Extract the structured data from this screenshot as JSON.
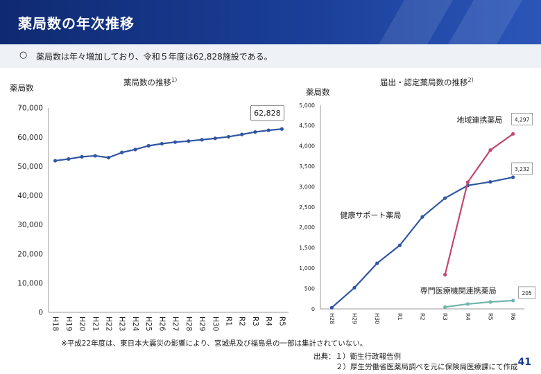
{
  "header": {
    "title": "薬局数の年次推移"
  },
  "summary": {
    "bullet": "○",
    "text": "薬局数は年々増加しており、令和５年度は62,828施設である。"
  },
  "chart_data": [
    {
      "type": "line",
      "title": "薬局数の推移",
      "title_note": "1）",
      "ylabel": "薬局数",
      "ylim": [
        0,
        70000
      ],
      "yticks": [
        0,
        10000,
        20000,
        30000,
        40000,
        50000,
        60000,
        70000
      ],
      "ytick_labels": [
        "0",
        "10,000",
        "20,000",
        "30,000",
        "40,000",
        "50,000",
        "60,000",
        "70,000"
      ],
      "grid": false,
      "categories": [
        "H18",
        "H19",
        "H20",
        "H21",
        "H22",
        "H23",
        "H24",
        "H25",
        "H26",
        "H27",
        "H28",
        "H29",
        "H30",
        "R1",
        "R2",
        "R3",
        "R4",
        "R5"
      ],
      "series": [
        {
          "color": "#2f55a4",
          "values": [
            51952,
            52539,
            53304,
            53642,
            53001,
            54780,
            55797,
            57071,
            57784,
            58326,
            58678,
            59138,
            59613,
            60171,
            60951,
            61791,
            62375,
            62828
          ]
        }
      ],
      "annotations": [
        {
          "text": "62,828"
        }
      ]
    },
    {
      "type": "line",
      "title": "届出・認定薬局数の推移",
      "title_note": "2）",
      "ylabel": "薬局数",
      "ylim": [
        0,
        5000
      ],
      "yticks": [
        0,
        500,
        1000,
        1500,
        2000,
        2500,
        3000,
        3500,
        4000,
        4500,
        5000
      ],
      "ytick_labels": [
        "0",
        "500",
        "1,000",
        "1,500",
        "2,000",
        "2,500",
        "3,000",
        "3,500",
        "4,000",
        "4,500",
        "5,000"
      ],
      "grid": false,
      "categories": [
        "H28",
        "H29",
        "H30",
        "R1",
        "R2",
        "R3",
        "R4",
        "R5",
        "R6"
      ],
      "series": [
        {
          "name": "健康サポート薬局",
          "color": "#2f55a4",
          "values": [
            30,
            520,
            1120,
            1560,
            2260,
            2720,
            3030,
            3120,
            3232
          ]
        },
        {
          "name": "地域連携薬局",
          "color": "#c2476c",
          "values": [
            null,
            null,
            null,
            null,
            null,
            840,
            3110,
            3900,
            4297
          ]
        },
        {
          "name": "専門医療機関連携薬局",
          "color": "#6fb5a9",
          "values": [
            null,
            null,
            null,
            null,
            null,
            45,
            120,
            170,
            205
          ]
        }
      ],
      "data_labels": [
        {
          "text": "4,297"
        },
        {
          "text": "3,232"
        },
        {
          "text": "205"
        }
      ]
    }
  ],
  "footnote": "※平成22年度は、東日本大震災の影響により、宮城県及び福島県の一部は集計されていない。",
  "source": {
    "line1": "出典：１）衛生行政報告例",
    "line2": "２）厚生労働省医薬局調べを元に保険局医療課にて作成"
  },
  "page_number": "41"
}
